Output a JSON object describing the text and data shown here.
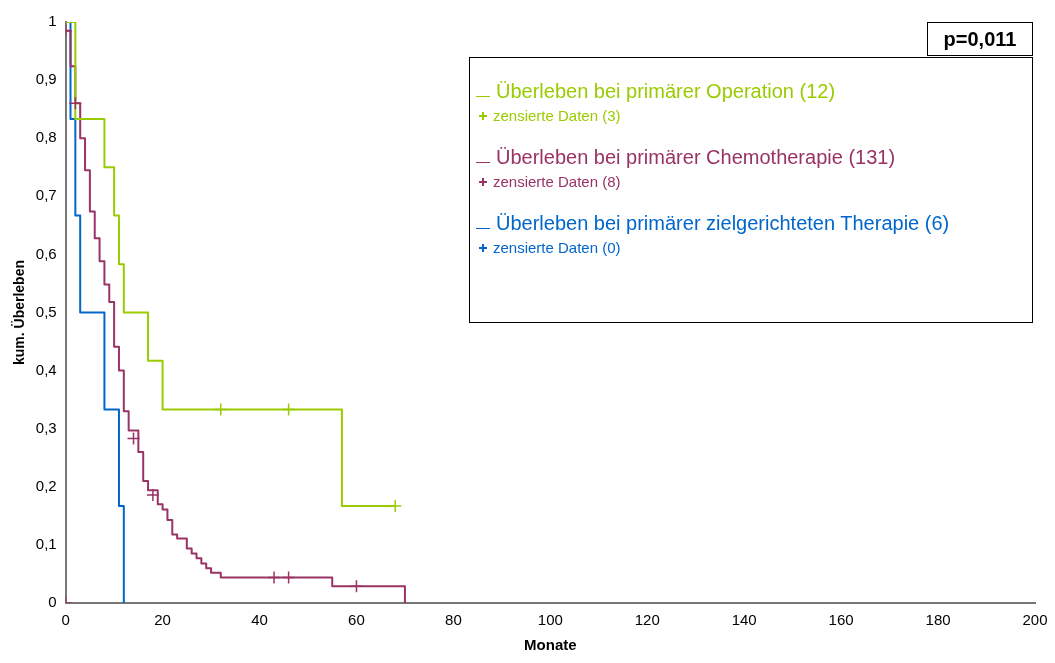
{
  "chart_data": {
    "type": "step",
    "xlabel": "Monate",
    "ylabel": "kum. Überleben",
    "annotations": [
      "p=0,011"
    ],
    "xlim": [
      0,
      200
    ],
    "xticks": [
      0,
      20,
      40,
      60,
      80,
      100,
      120,
      140,
      160,
      180,
      200
    ],
    "ylim": [
      0,
      1
    ],
    "yticks": [
      0,
      {
        "value": 0.1,
        "label": "0,1"
      },
      {
        "value": 0.2,
        "label": "0,2"
      },
      {
        "value": 0.3,
        "label": "0,3"
      },
      {
        "value": 0.4,
        "label": "0,4"
      },
      {
        "value": 0.5,
        "label": "0,5"
      },
      {
        "value": 0.6,
        "label": "0,6"
      },
      {
        "value": 0.7,
        "label": "0,7"
      },
      {
        "value": 0.8,
        "label": "0,8"
      },
      {
        "value": 0.9,
        "label": "0,9"
      },
      1
    ],
    "grid": false,
    "legend": "top right",
    "series": [
      {
        "name": "Überleben bei primärer Operation (12)",
        "color": "#99cc00",
        "marker": "none",
        "x": [
          0,
          2,
          8,
          10,
          11,
          12,
          17,
          20,
          57,
          68
        ],
        "values": [
          1,
          0.833,
          0.75,
          0.667,
          0.583,
          0.5,
          0.417,
          0.333,
          0.167,
          0.167
        ]
      },
      {
        "name": "zensierte Daten (3)",
        "type": "scatter",
        "color": "#99cc00",
        "marker": "cross",
        "x": [
          32,
          46,
          68
        ],
        "values": [
          0.333,
          0.333,
          0.167
        ]
      },
      {
        "name": "Überleben bei primärer Chemotherapie (131)",
        "color": "#993366",
        "marker": "none",
        "x": [
          0,
          1,
          2,
          3,
          4,
          5,
          6,
          7,
          8,
          9,
          10,
          11,
          12,
          13,
          15,
          16,
          17,
          19,
          20,
          21,
          22,
          23,
          25,
          26,
          27,
          28,
          29,
          30,
          32,
          55,
          70
        ],
        "values": [
          0.985,
          0.924,
          0.86,
          0.8,
          0.745,
          0.674,
          0.628,
          0.588,
          0.548,
          0.518,
          0.441,
          0.4,
          0.33,
          0.297,
          0.26,
          0.21,
          0.194,
          0.17,
          0.161,
          0.143,
          0.118,
          0.111,
          0.094,
          0.085,
          0.077,
          0.068,
          0.06,
          0.052,
          0.044,
          0.029,
          0
        ]
      },
      {
        "name": "zensierte Daten (8)",
        "type": "scatter",
        "color": "#993366",
        "marker": "cross",
        "x": [
          0,
          2,
          14,
          18,
          43,
          46,
          60,
          0
        ],
        "values": [
          0.985,
          0.86,
          0.283,
          0.186,
          0.044,
          0.044,
          0.029,
          0
        ]
      },
      {
        "name": "Überleben bei primärer zielgerichteten Therapie (6)",
        "color": "#0066cc",
        "marker": "none",
        "x": [
          0,
          1,
          2,
          3,
          8,
          11,
          12
        ],
        "values": [
          1,
          0.833,
          0.667,
          0.5,
          0.333,
          0.167,
          0
        ]
      },
      {
        "name": "zensierte Daten (0)",
        "type": "scatter",
        "color": "#0066cc",
        "marker": "cross"
      }
    ]
  }
}
